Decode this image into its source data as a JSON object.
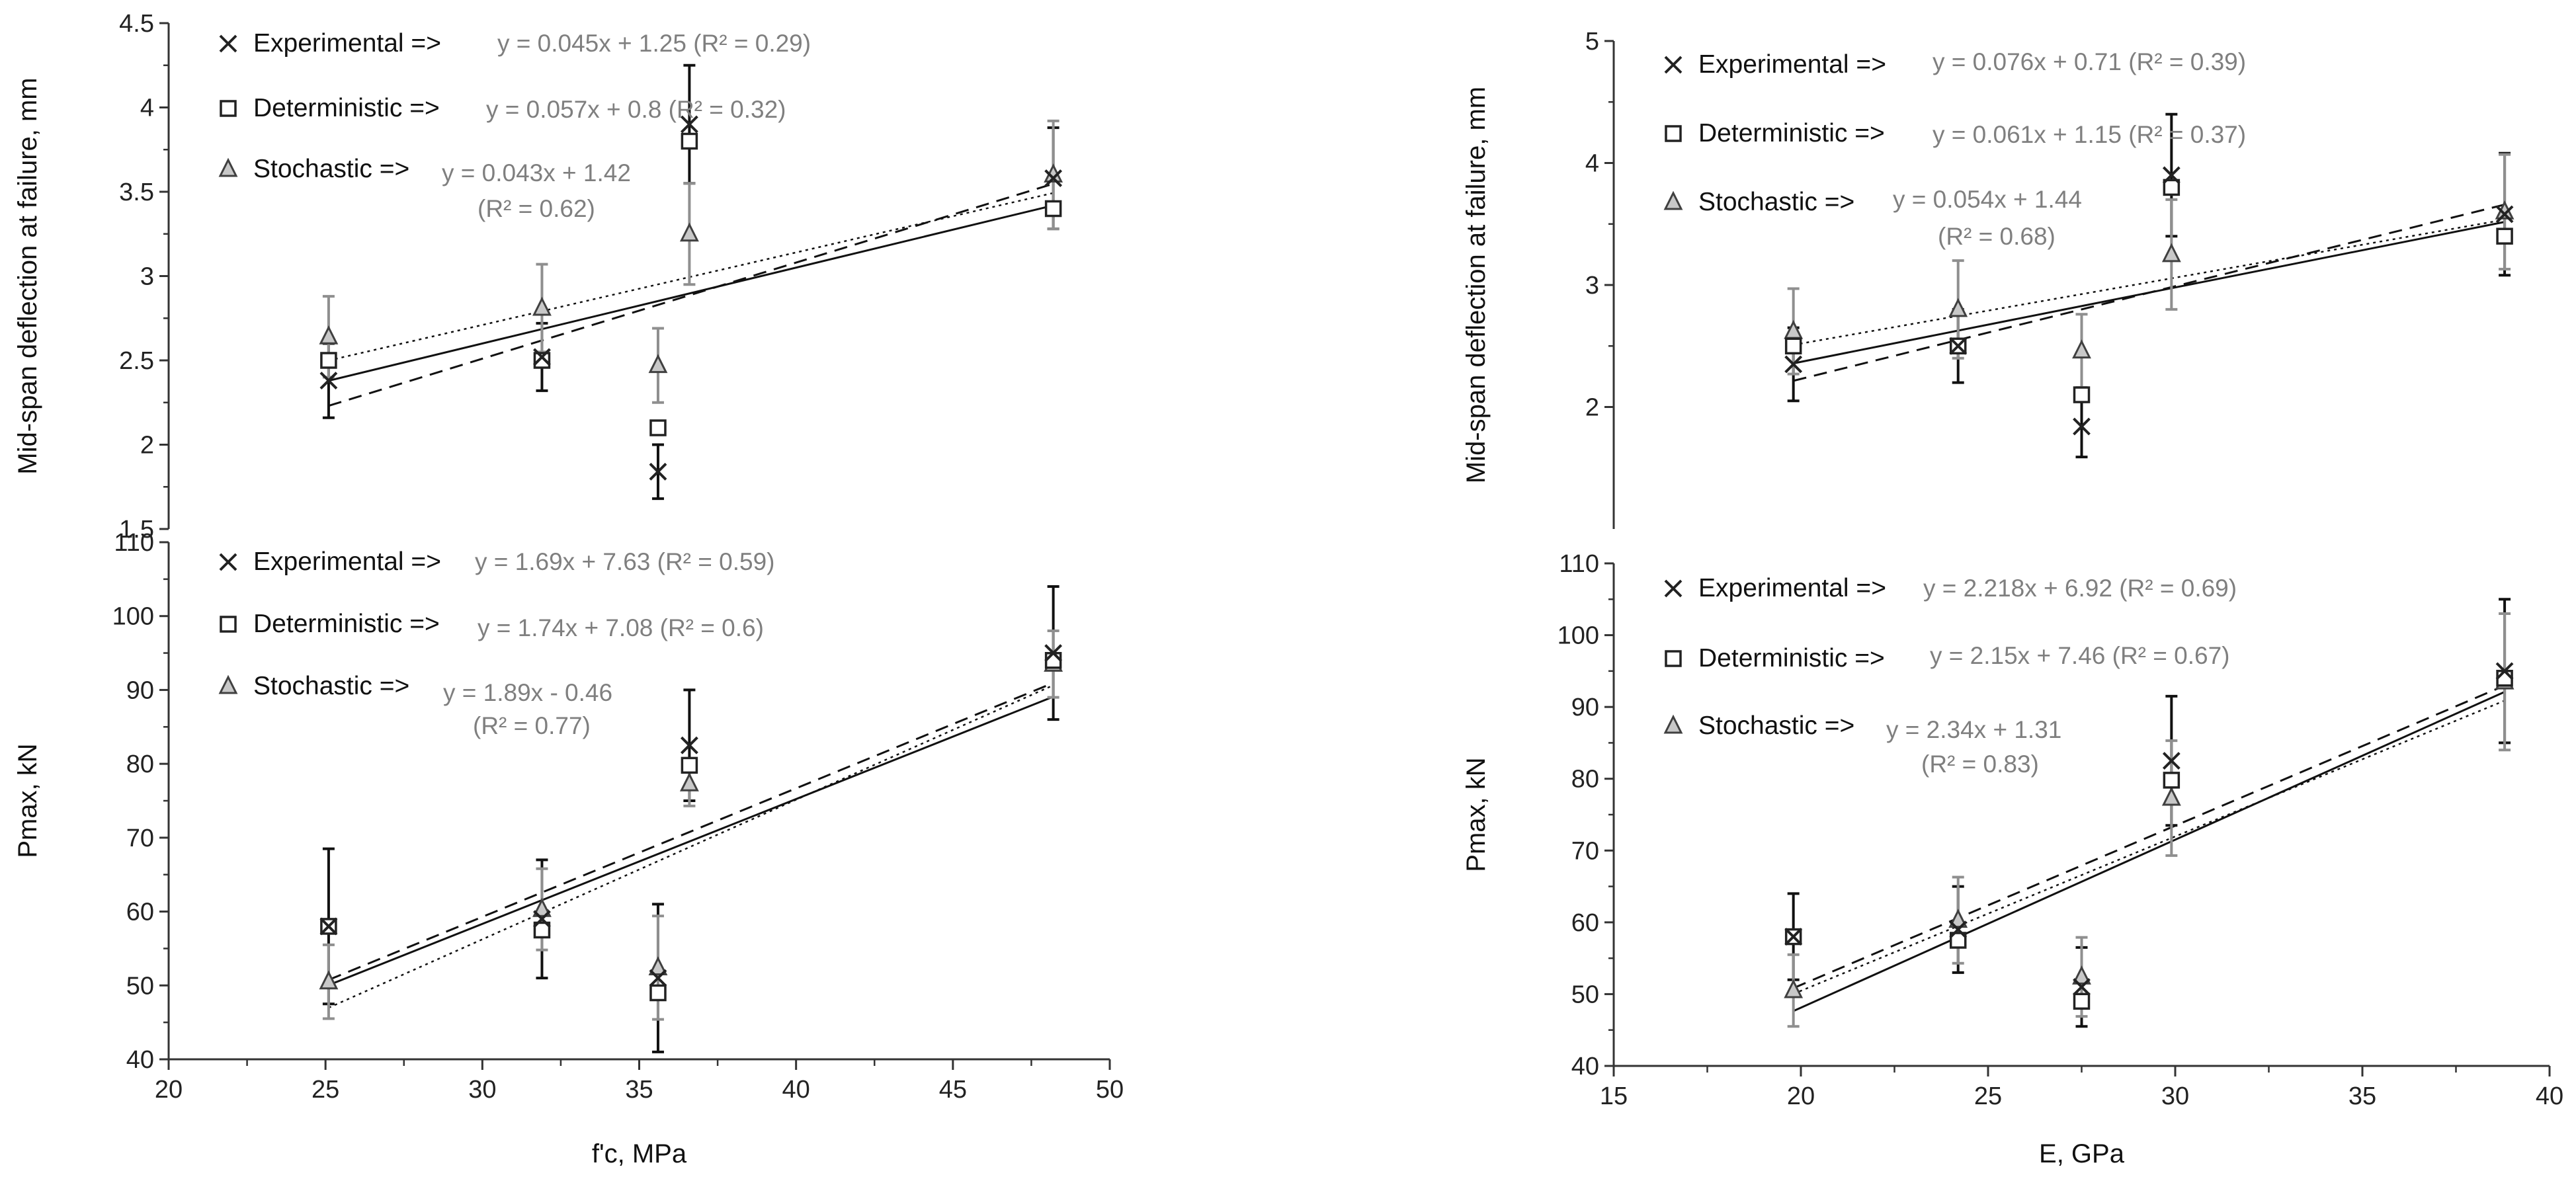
{
  "chart_data": [
    {
      "id": "tl",
      "type": "scatter",
      "xlabel": "",
      "ylabel": "Mid-span deflection at failure, mm",
      "xlim": [
        20,
        50
      ],
      "ylim": [
        1.5,
        4.5
      ],
      "yticks": [
        1.5,
        2,
        2.5,
        3,
        3.5,
        4,
        4.5
      ],
      "ytick_labels": [
        "1.5",
        "2",
        "2.5",
        "3",
        "3.5",
        "4",
        "4.5"
      ],
      "legend_labels": [
        "Experimental =>",
        "Deterministic =>",
        "Stochastic =>"
      ],
      "equations": [
        "y = 0.045x + 1.25 (R² = 0.29)",
        "y = 0.057x + 0.8  (R² = 0.32)",
        "y = 0.043x + 1.42",
        "(R² = 0.62)"
      ],
      "series": [
        {
          "name": "Experimental",
          "marker": "x",
          "color": "#222222",
          "x": [
            25.1,
            31.9,
            35.6,
            36.6,
            48.2
          ],
          "y": [
            2.38,
            2.52,
            1.84,
            3.9,
            3.58
          ],
          "err": [
            0.22,
            0.2,
            0.16,
            0.35,
            0.3
          ],
          "trend": [
            0.045,
            1.25
          ],
          "trend_style": "solid"
        },
        {
          "name": "Deterministic",
          "marker": "square",
          "color": "#222222",
          "x": [
            25.1,
            31.9,
            35.6,
            36.6,
            48.2
          ],
          "y": [
            2.5,
            2.5,
            2.1,
            3.8,
            3.4
          ],
          "err": [
            0,
            0,
            0,
            0,
            0
          ],
          "trend": [
            0.057,
            0.8
          ],
          "trend_style": "dashed"
        },
        {
          "name": "Stochastic",
          "marker": "triangle",
          "color": "#7f7f7f",
          "x": [
            25.1,
            31.9,
            35.6,
            36.6,
            48.2
          ],
          "y": [
            2.64,
            2.81,
            2.47,
            3.25,
            3.6
          ],
          "err": [
            0.24,
            0.26,
            0.22,
            0.3,
            0.32
          ],
          "trend": [
            0.043,
            1.42
          ],
          "trend_style": "dotted"
        }
      ]
    },
    {
      "id": "tr",
      "type": "scatter",
      "xlabel": "",
      "ylabel": "Mid-span deflection at failure, mm",
      "xlim": [
        15,
        40
      ],
      "ylim": [
        1,
        5
      ],
      "yticks": [
        2,
        3,
        4,
        5
      ],
      "ytick_labels": [
        "2",
        "3",
        "4",
        "5"
      ],
      "legend_labels": [
        "Experimental =>",
        "Deterministic =>",
        "Stochastic =>"
      ],
      "equations": [
        "y = 0.076x + 0.71 (R² = 0.39)",
        "y = 0.061x + 1.15 (R² = 0.37)",
        "y = 0.054x + 1.44",
        "(R² = 0.68)"
      ],
      "series": [
        {
          "name": "Experimental",
          "marker": "x",
          "color": "#222222",
          "x": [
            19.8,
            24.2,
            27.5,
            29.9,
            38.8
          ],
          "y": [
            2.35,
            2.5,
            1.84,
            3.9,
            3.58
          ],
          "err": [
            0.3,
            0.3,
            0.25,
            0.5,
            0.5
          ],
          "trend": [
            0.076,
            0.71
          ],
          "trend_style": "dashed"
        },
        {
          "name": "Deterministic",
          "marker": "square",
          "color": "#222222",
          "x": [
            19.8,
            24.2,
            27.5,
            29.9,
            38.8
          ],
          "y": [
            2.5,
            2.5,
            2.1,
            3.8,
            3.4
          ],
          "err": [
            0,
            0,
            0,
            0,
            0
          ],
          "trend": [
            0.061,
            1.15
          ],
          "trend_style": "solid"
        },
        {
          "name": "Stochastic",
          "marker": "triangle",
          "color": "#7f7f7f",
          "x": [
            19.8,
            24.2,
            27.5,
            29.9,
            38.8
          ],
          "y": [
            2.62,
            2.8,
            2.46,
            3.25,
            3.6
          ],
          "err": [
            0.35,
            0.4,
            0.3,
            0.45,
            0.47
          ],
          "trend": [
            0.054,
            1.44
          ],
          "trend_style": "dotted"
        }
      ]
    },
    {
      "id": "bl",
      "type": "scatter",
      "xlabel": "f'c, MPa",
      "ylabel": "Pmax, kN",
      "xlim": [
        20,
        50
      ],
      "ylim": [
        40,
        110
      ],
      "xticks": [
        20,
        25,
        30,
        35,
        40,
        45,
        50
      ],
      "xtick_labels": [
        "20",
        "25",
        "30",
        "35",
        "40",
        "45",
        "50"
      ],
      "yticks": [
        40,
        50,
        60,
        70,
        80,
        90,
        100,
        110
      ],
      "ytick_labels": [
        "40",
        "50",
        "60",
        "70",
        "80",
        "90",
        "100",
        "110"
      ],
      "legend_labels": [
        "Experimental =>",
        "Deterministic =>",
        "Stochastic =>"
      ],
      "equations": [
        "y = 1.69x + 7.63 (R² = 0.59)",
        "y = 1.74x + 7.08 (R² = 0.6)",
        "y = 1.89x - 0.46",
        "(R² = 0.77)"
      ],
      "series": [
        {
          "name": "Experimental",
          "marker": "x",
          "color": "#222222",
          "x": [
            25.1,
            31.9,
            35.6,
            36.6,
            48.2
          ],
          "y": [
            58,
            59,
            51,
            82.5,
            95
          ],
          "err": [
            10.5,
            8,
            10,
            7.5,
            9
          ],
          "trend": [
            1.69,
            7.63
          ],
          "trend_style": "solid"
        },
        {
          "name": "Deterministic",
          "marker": "square",
          "color": "#222222",
          "x": [
            25.1,
            31.9,
            35.6,
            36.6,
            48.2
          ],
          "y": [
            58,
            57.5,
            49,
            79.8,
            94
          ],
          "err": [
            0,
            0,
            0,
            0,
            0
          ],
          "trend": [
            1.74,
            7.08
          ],
          "trend_style": "dashed"
        },
        {
          "name": "Stochastic",
          "marker": "triangle",
          "color": "#7f7f7f",
          "x": [
            25.1,
            31.9,
            35.6,
            36.6,
            48.2
          ],
          "y": [
            50.5,
            60.3,
            52.4,
            77.3,
            93.5
          ],
          "err": [
            5,
            5.5,
            7,
            3,
            4.5
          ],
          "trend": [
            1.89,
            -0.46
          ],
          "trend_style": "dotted"
        }
      ]
    },
    {
      "id": "br",
      "type": "scatter",
      "xlabel": "E, GPa",
      "ylabel": "Pmax, kN",
      "xlim": [
        15,
        40
      ],
      "ylim": [
        40,
        110
      ],
      "xticks": [
        15,
        20,
        25,
        30,
        35,
        40
      ],
      "xtick_labels": [
        "15",
        "20",
        "25",
        "30",
        "35",
        "40"
      ],
      "yticks": [
        40,
        50,
        60,
        70,
        80,
        90,
        100,
        110
      ],
      "ytick_labels": [
        "40",
        "50",
        "60",
        "70",
        "80",
        "90",
        "100",
        "110"
      ],
      "legend_labels": [
        "Experimental =>",
        "Deterministic =>",
        "Stochastic =>"
      ],
      "equations": [
        "y = 2.218x + 6.92 (R² = 0.69)",
        "y = 2.15x + 7.46 (R² = 0.67)",
        "y = 2.34x + 1.31",
        "(R² = 0.83)"
      ],
      "series": [
        {
          "name": "Experimental",
          "marker": "x",
          "color": "#222222",
          "x": [
            19.8,
            24.2,
            27.5,
            29.9,
            38.8
          ],
          "y": [
            58,
            59,
            51,
            82.5,
            95
          ],
          "err": [
            6,
            6,
            5.5,
            9,
            10
          ],
          "trend": [
            2.218,
            6.92
          ],
          "trend_style": "dashed"
        },
        {
          "name": "Deterministic",
          "marker": "square",
          "color": "#222222",
          "x": [
            19.8,
            24.2,
            27.5,
            29.9,
            38.8
          ],
          "y": [
            58,
            57.5,
            49,
            79.8,
            94
          ],
          "err": [
            0,
            0,
            0,
            0,
            0
          ],
          "trend": [
            2.15,
            7.46
          ],
          "trend_style": "dotted"
        },
        {
          "name": "Stochastic",
          "marker": "triangle",
          "color": "#7f7f7f",
          "x": [
            19.8,
            24.2,
            27.5,
            29.9,
            38.8
          ],
          "y": [
            50.5,
            60.3,
            52.4,
            77.3,
            93.5
          ],
          "err": [
            5,
            6,
            5.5,
            8,
            9.5
          ],
          "trend": [
            2.34,
            1.31
          ],
          "trend_style": "solid"
        }
      ]
    }
  ]
}
